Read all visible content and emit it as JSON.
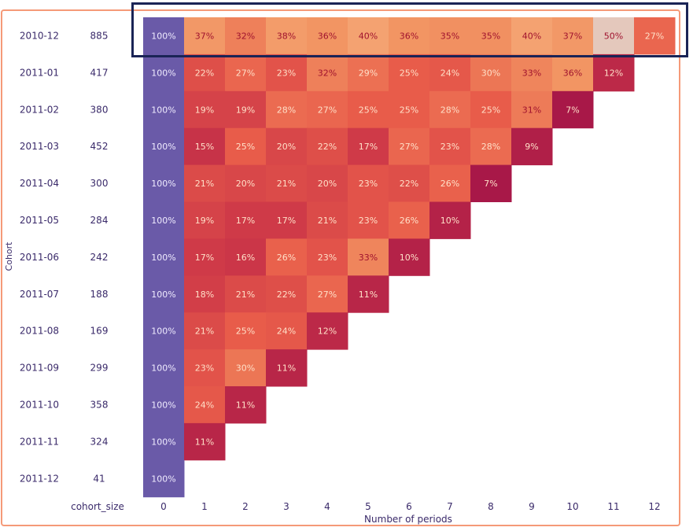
{
  "chart_data": {
    "type": "heatmap",
    "title": "",
    "xlabel": "Number of periods",
    "ylabel": "Cohort",
    "size_column_label": "cohort_size",
    "x_ticks": [
      "0",
      "1",
      "2",
      "3",
      "4",
      "5",
      "6",
      "7",
      "8",
      "9",
      "10",
      "11",
      "12"
    ],
    "cohorts": [
      "2010-12",
      "2011-01",
      "2011-02",
      "2011-03",
      "2011-04",
      "2011-05",
      "2011-06",
      "2011-07",
      "2011-08",
      "2011-09",
      "2011-10",
      "2011-11",
      "2011-12"
    ],
    "cohort_sizes": [
      "885",
      "417",
      "380",
      "452",
      "300",
      "284",
      "242",
      "188",
      "169",
      "299",
      "358",
      "324",
      "41"
    ],
    "retention": [
      [
        100,
        37,
        32,
        38,
        36,
        40,
        36,
        35,
        35,
        40,
        37,
        50,
        27
      ],
      [
        100,
        22,
        27,
        23,
        32,
        29,
        25,
        24,
        30,
        33,
        36,
        12
      ],
      [
        100,
        19,
        19,
        28,
        27,
        25,
        25,
        28,
        25,
        31,
        7
      ],
      [
        100,
        15,
        25,
        20,
        22,
        17,
        27,
        23,
        28,
        9
      ],
      [
        100,
        21,
        20,
        21,
        20,
        23,
        22,
        26,
        7
      ],
      [
        100,
        19,
        17,
        17,
        21,
        23,
        26,
        10
      ],
      [
        100,
        17,
        16,
        26,
        23,
        33,
        10
      ],
      [
        100,
        18,
        21,
        22,
        27,
        11
      ],
      [
        100,
        21,
        25,
        24,
        12
      ],
      [
        100,
        23,
        30,
        11
      ],
      [
        100,
        24,
        11
      ],
      [
        100,
        11
      ],
      [
        100
      ]
    ],
    "value_suffix": "%",
    "first_period_color": "#6a5aa8",
    "colormap": "rocket-like (dark red low → peach high)",
    "highlighted_row": "2010-12",
    "highlight_color": "#1a2456"
  }
}
